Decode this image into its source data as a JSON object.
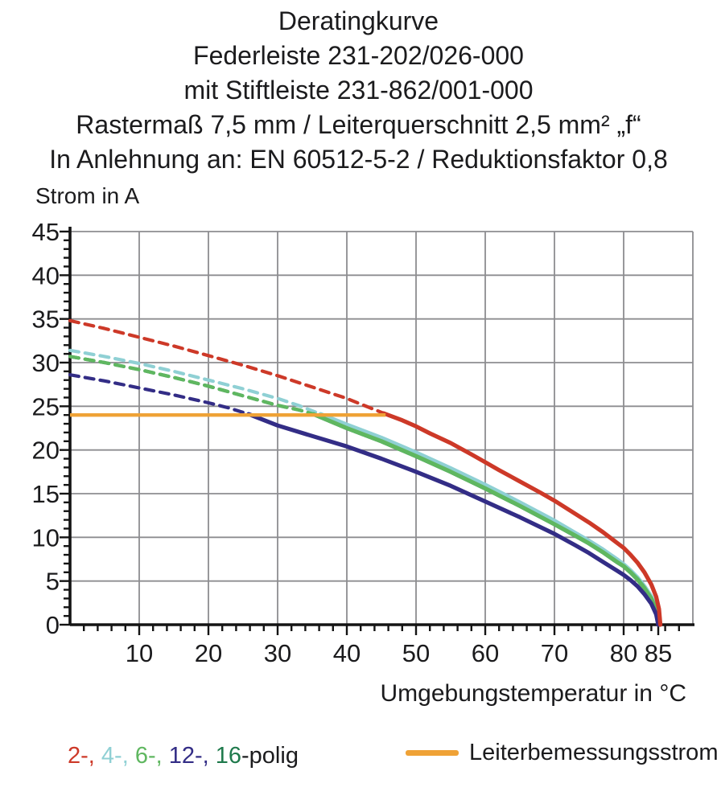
{
  "title_lines": [
    "Deratingkurve",
    "Federleiste 231-202/026-000",
    "mit Stiftleiste 231-862/001-000",
    "Rastermaß 7,5 mm / Leiterquerschnitt 2,5 mm² „f“",
    "In Anlehnung an: EN 60512-5-2 / Reduktionsfaktor 0,8"
  ],
  "legend": {
    "pole_items": [
      {
        "series": "2-polig",
        "label": "2-",
        "color": "#cd3928"
      },
      {
        "series": "4-polig",
        "label": "4-",
        "color": "#8fd0d4"
      },
      {
        "series": "6-polig",
        "label": "6-",
        "color": "#5fb760"
      },
      {
        "series": "12-polig",
        "label": "12-",
        "color": "#332d86"
      },
      {
        "series": "16-polig",
        "label": "16",
        "color": "#1f7a4c"
      }
    ],
    "pole_suffix": "-polig",
    "rated_current_label": "Leiterbemessungsstrom"
  },
  "chart_data": {
    "type": "line",
    "title": "Deratingkurve Federleiste 231-202/026-000 mit Stiftleiste 231-862/001-000",
    "xlabel": "Umgebungstemperatur in °C",
    "ylabel": "Strom in A",
    "xlim": [
      0,
      90
    ],
    "ylim": [
      0,
      45
    ],
    "grid": true,
    "x_major_ticks": [
      10,
      20,
      30,
      40,
      50,
      60,
      70,
      80,
      85
    ],
    "x_minor_step": 2,
    "x_grid_step": 10,
    "y_major_ticks": [
      0,
      5,
      10,
      15,
      20,
      25,
      30,
      35,
      40,
      45
    ],
    "y_minor_step": 1,
    "y_grid_step": 5,
    "axis_color": "#141414",
    "grid_color": "#8d8d90",
    "series": [
      {
        "name": "2-polig",
        "color": "#cd3928",
        "dashed_points": [
          [
            0,
            34.8
          ],
          [
            5,
            33.9
          ],
          [
            10,
            32.9
          ],
          [
            15,
            31.9
          ],
          [
            20,
            30.8
          ],
          [
            25,
            29.7
          ],
          [
            30,
            28.5
          ],
          [
            35,
            27.2
          ],
          [
            40,
            25.9
          ],
          [
            45.3,
            24.2
          ]
        ],
        "solid_points": [
          [
            45.3,
            24.2
          ],
          [
            48,
            23.4
          ],
          [
            50,
            22.7
          ],
          [
            52,
            21.9
          ],
          [
            55,
            20.8
          ],
          [
            58,
            19.5
          ],
          [
            60,
            18.6
          ],
          [
            62,
            17.7
          ],
          [
            65,
            16.4
          ],
          [
            68,
            15.1
          ],
          [
            70,
            14.2
          ],
          [
            72,
            13.2
          ],
          [
            75,
            11.7
          ],
          [
            77,
            10.6
          ],
          [
            79,
            9.4
          ],
          [
            80,
            8.8
          ],
          [
            81,
            8.0
          ],
          [
            82,
            7.1
          ],
          [
            83,
            6.0
          ],
          [
            84,
            4.6
          ],
          [
            84.7,
            3.2
          ],
          [
            85.1,
            1.8
          ],
          [
            85.3,
            0
          ]
        ]
      },
      {
        "name": "4-polig",
        "color": "#8fd0d4",
        "dashed_points": [
          [
            0,
            31.4
          ],
          [
            5,
            30.7
          ],
          [
            10,
            29.9
          ],
          [
            15,
            29.0
          ],
          [
            20,
            28.0
          ],
          [
            25,
            27.0
          ],
          [
            30,
            25.9
          ],
          [
            33,
            25.1
          ],
          [
            36.2,
            24.1
          ]
        ],
        "solid_points": [
          [
            36.2,
            24.1
          ],
          [
            40,
            22.9
          ],
          [
            45,
            21.4
          ],
          [
            50,
            19.7
          ],
          [
            55,
            17.9
          ],
          [
            60,
            16.0
          ],
          [
            65,
            14.0
          ],
          [
            70,
            11.9
          ],
          [
            73,
            10.5
          ],
          [
            75,
            9.6
          ],
          [
            77,
            8.6
          ],
          [
            79,
            7.5
          ],
          [
            80,
            6.9
          ],
          [
            81,
            6.2
          ],
          [
            82,
            5.4
          ],
          [
            83,
            4.4
          ],
          [
            84,
            3.2
          ],
          [
            84.8,
            1.7
          ],
          [
            85.2,
            0
          ]
        ]
      },
      {
        "name": "6-polig",
        "color": "#5fb760",
        "dashed_points": [
          [
            0,
            30.7
          ],
          [
            5,
            30.0
          ],
          [
            10,
            29.2
          ],
          [
            15,
            28.3
          ],
          [
            20,
            27.3
          ],
          [
            25,
            26.2
          ],
          [
            30,
            25.1
          ],
          [
            33,
            24.6
          ],
          [
            35.2,
            24.1
          ]
        ],
        "solid_points": [
          [
            35.2,
            24.1
          ],
          [
            40,
            22.5
          ],
          [
            45,
            21.0
          ],
          [
            50,
            19.3
          ],
          [
            55,
            17.5
          ],
          [
            60,
            15.6
          ],
          [
            65,
            13.6
          ],
          [
            70,
            11.5
          ],
          [
            73,
            10.2
          ],
          [
            75,
            9.3
          ],
          [
            77,
            8.3
          ],
          [
            79,
            7.2
          ],
          [
            80,
            6.7
          ],
          [
            81,
            6.0
          ],
          [
            82,
            5.2
          ],
          [
            83,
            4.2
          ],
          [
            84,
            3.0
          ],
          [
            84.8,
            1.5
          ],
          [
            85.1,
            0
          ]
        ]
      },
      {
        "name": "12-polig",
        "color": "#332d86",
        "dashed_points": [
          [
            0,
            28.6
          ],
          [
            5,
            27.9
          ],
          [
            10,
            27.1
          ],
          [
            15,
            26.3
          ],
          [
            20,
            25.4
          ],
          [
            23,
            24.8
          ],
          [
            25.8,
            24.1
          ]
        ],
        "solid_points": [
          [
            25.8,
            24.1
          ],
          [
            30,
            22.8
          ],
          [
            35,
            21.6
          ],
          [
            40,
            20.4
          ],
          [
            45,
            19.0
          ],
          [
            50,
            17.5
          ],
          [
            55,
            15.9
          ],
          [
            60,
            14.1
          ],
          [
            65,
            12.3
          ],
          [
            70,
            10.4
          ],
          [
            73,
            9.1
          ],
          [
            75,
            8.2
          ],
          [
            77,
            7.2
          ],
          [
            79,
            6.2
          ],
          [
            80,
            5.7
          ],
          [
            81,
            5.1
          ],
          [
            82,
            4.4
          ],
          [
            83,
            3.5
          ],
          [
            84,
            2.4
          ],
          [
            84.7,
            1.2
          ],
          [
            85,
            0
          ]
        ]
      },
      {
        "name": "16-polig",
        "color": "#1f7a4c",
        "note": "coincides with 6-polig curve in the figure",
        "dashed_points": [
          [
            0,
            30.7
          ],
          [
            5,
            30.0
          ],
          [
            10,
            29.2
          ],
          [
            15,
            28.3
          ],
          [
            20,
            27.3
          ],
          [
            25,
            26.2
          ],
          [
            30,
            25.1
          ],
          [
            33,
            24.6
          ],
          [
            35.2,
            24.1
          ]
        ],
        "solid_points": [
          [
            35.2,
            24.1
          ],
          [
            40,
            22.5
          ],
          [
            45,
            21.0
          ],
          [
            50,
            19.3
          ],
          [
            55,
            17.5
          ],
          [
            60,
            15.6
          ],
          [
            65,
            13.6
          ],
          [
            70,
            11.5
          ],
          [
            73,
            10.2
          ],
          [
            75,
            9.3
          ],
          [
            77,
            8.3
          ],
          [
            79,
            7.2
          ],
          [
            80,
            6.7
          ],
          [
            81,
            6.0
          ],
          [
            82,
            5.2
          ],
          [
            83,
            4.2
          ],
          [
            84,
            3.0
          ],
          [
            84.8,
            1.5
          ],
          [
            85.1,
            0
          ]
        ]
      }
    ],
    "reference_line": {
      "name": "Leiterbemessungsstrom",
      "color": "#efa236",
      "value": 24,
      "x_range": [
        0,
        45.6
      ]
    }
  }
}
